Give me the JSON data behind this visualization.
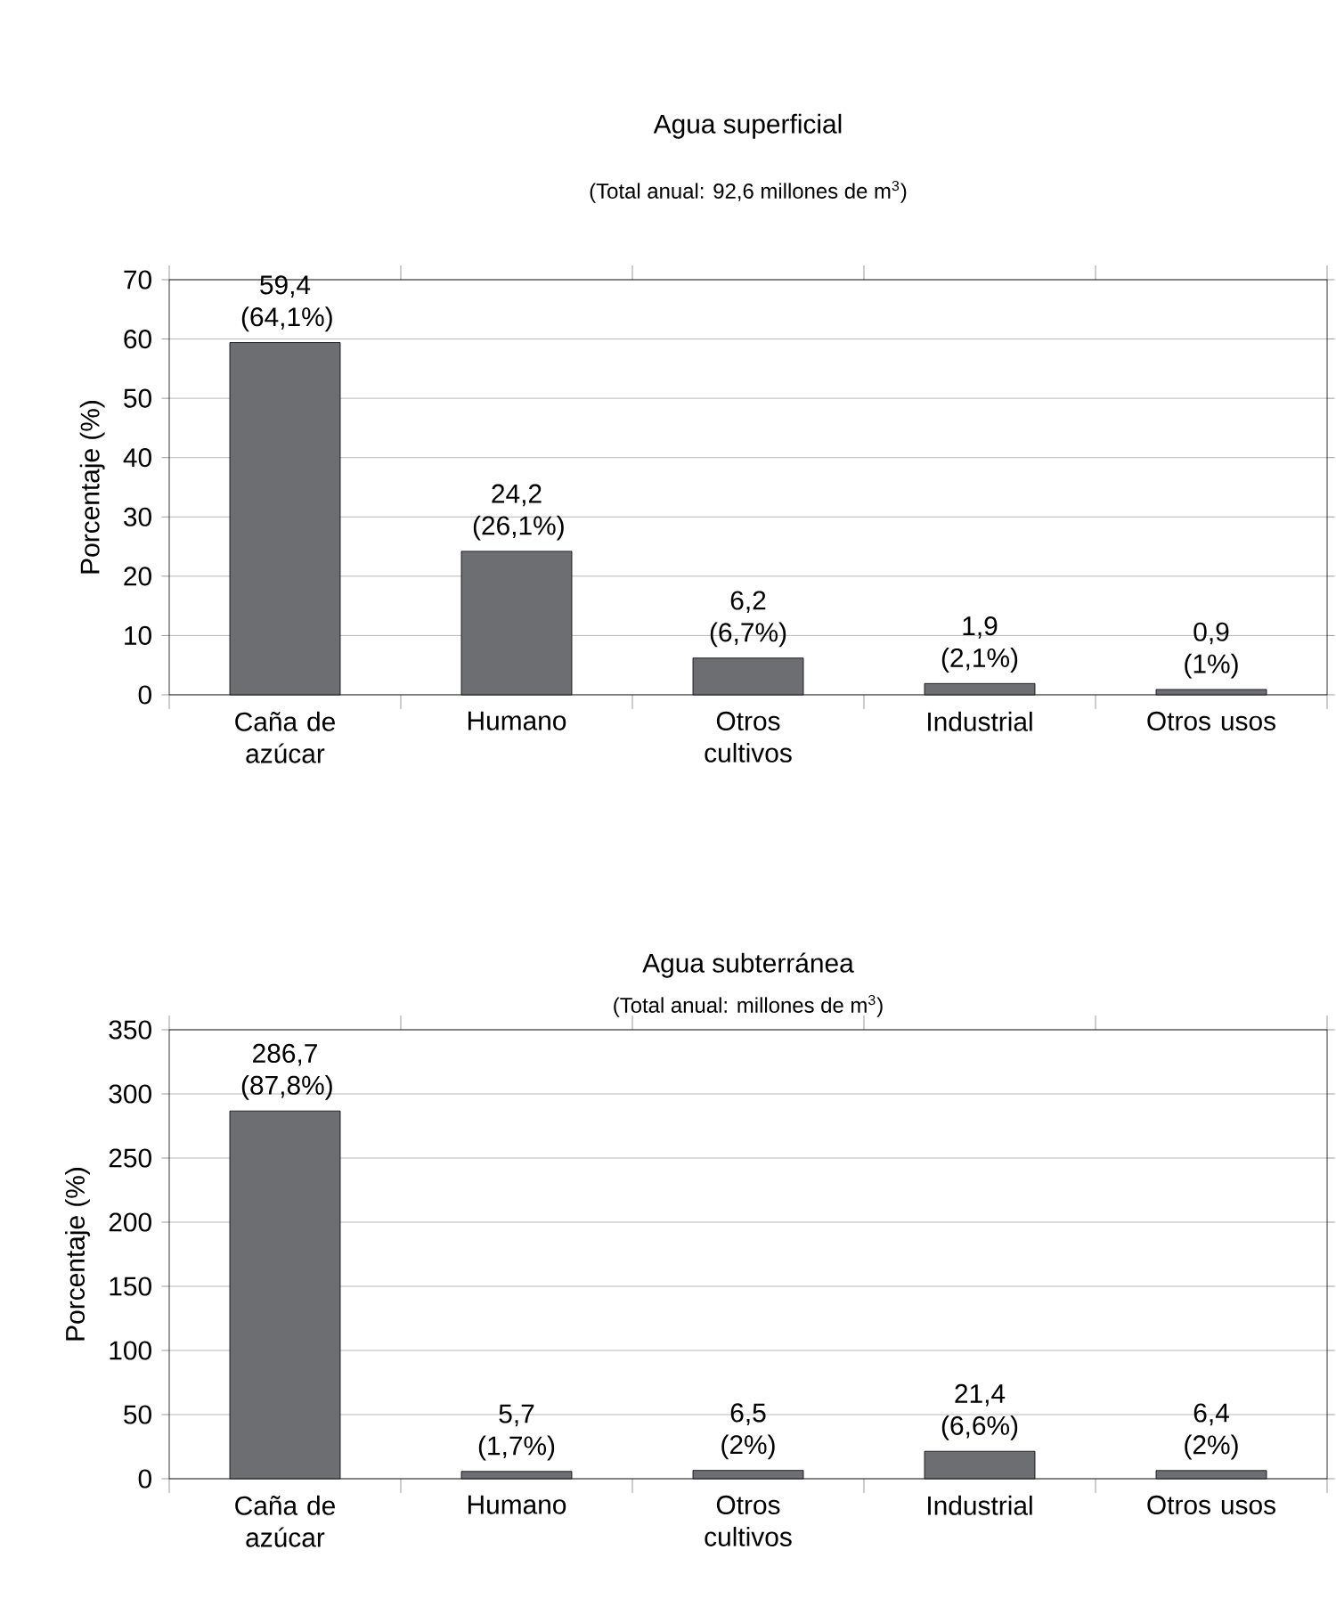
{
  "chart_data": [
    {
      "type": "bar",
      "title": "Agua superficial",
      "subtitle": "(Total anual: 92,6 millones de m$^{3}$)",
      "ylabel": "Porcentaje (%)",
      "categories": [
        "Caña de azúcar",
        "Humano",
        "Otros cultivos",
        "Industrial",
        "Otros usos"
      ],
      "values": [
        59.4,
        24.2,
        6.2,
        1.9,
        0.9
      ],
      "color": "#6d6e72",
      "value_labels": [
        "59,4 (64,1%)",
        "24,2 (26,1%)",
        "6,2 (6,7%)",
        "1,9 (2,1%)",
        "0,9 (1%)"
      ],
      "ylim": [
        0,
        70
      ],
      "yticks": [
        0,
        10,
        20,
        30,
        40,
        50,
        60,
        70
      ],
      "grid": "y"
    },
    {
      "type": "bar",
      "title": "Agua subterránea",
      "subtitle": "(Total anual: millones de m$^{3}$)",
      "ylabel": "Porcentaje (%)",
      "categories": [
        "Caña de azúcar",
        "Humano",
        "Otros cultivos",
        "Industrial",
        "Otros usos"
      ],
      "values": [
        286.7,
        5.7,
        6.5,
        21.4,
        6.4
      ],
      "color": "#6d6e72",
      "value_labels": [
        "286,7 (87,8%)",
        "5,7 (1,7%)",
        "6,5 (2%)",
        "21,4 (6,6%)",
        "6,4 (2%)"
      ],
      "ylim": [
        0,
        350
      ],
      "yticks": [
        0,
        50,
        100,
        150,
        200,
        250,
        300,
        350
      ],
      "grid": "y"
    }
  ]
}
